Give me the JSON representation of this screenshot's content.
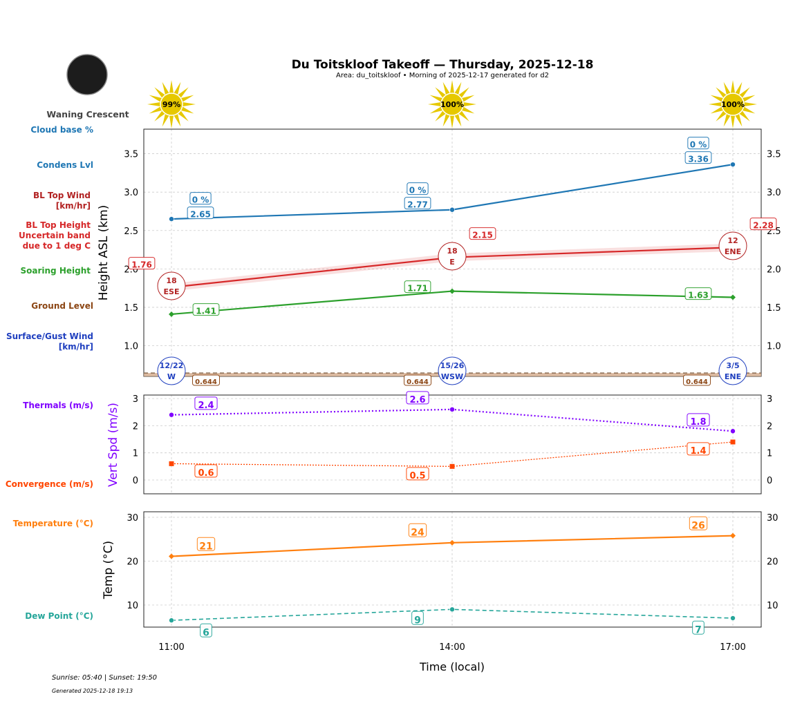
{
  "title": "Du Toitskloof Takeoff — Thursday, 2025-12-18",
  "subtitle": "Area: du_toitskloof • Morning of 2025-12-17 generated for d2",
  "moon": {
    "phase": "Waning Crescent"
  },
  "footer": {
    "sun": "Sunrise: 05:40 | Sunset: 19:50",
    "generated": "Generated 2025-12-18 19:13"
  },
  "colors": {
    "cloud": "#1f77b4",
    "bltop": "#d62728",
    "soaring": "#2ca02c",
    "ground": "#8b4513",
    "surface": "#1f3fbf",
    "thermal": "#8000ff",
    "convergence": "#ff4500",
    "temp": "#ff7f0e",
    "dew": "#26a69a",
    "sun": "#e6c800"
  },
  "chart_data": [
    {
      "type": "line",
      "ylabel": "Height ASL (km)",
      "ylim": [
        0.6,
        3.82
      ],
      "yticks": [
        1.0,
        1.5,
        2.0,
        2.5,
        3.0,
        3.5
      ],
      "grid": true,
      "x": [
        "11:00",
        "14:00",
        "17:00"
      ],
      "sun_percent": [
        "99%",
        "100%",
        "100%"
      ],
      "row_labels": [
        "Cloud base %",
        "Condens Lvl",
        "BL Top Wind [km/hr]",
        "BL Top Height Uncertain band due to 1 deg C",
        "Soaring Height",
        "Ground Level",
        "Surface/Gust Wind [km/hr]"
      ],
      "series": [
        {
          "name": "Condens Lvl",
          "values": [
            2.65,
            2.77,
            3.36
          ],
          "labels": [
            "2.65",
            "2.77",
            "3.36"
          ],
          "cloud_base": [
            "0 %",
            "0 %",
            "0 %"
          ]
        },
        {
          "name": "BL Top Height",
          "values": [
            1.76,
            2.15,
            2.28
          ],
          "band": 0.05,
          "labels": [
            "1.76",
            "2.15",
            "2.28"
          ],
          "wind": [
            [
              "18",
              "ESE"
            ],
            [
              "18",
              "E"
            ],
            [
              "12",
              "ENE"
            ]
          ]
        },
        {
          "name": "Soaring Height",
          "values": [
            1.41,
            1.71,
            1.63
          ],
          "labels": [
            "1.41",
            "1.71",
            "1.63"
          ]
        },
        {
          "name": "Ground Level",
          "values": [
            0.644,
            0.644,
            0.644
          ],
          "labels": [
            "0.644",
            "0.644",
            "0.644"
          ]
        },
        {
          "name": "Surface/Gust Wind",
          "wind": [
            [
              "12/22",
              "W"
            ],
            [
              "15/26",
              "WSW"
            ],
            [
              "3/5",
              "ENE"
            ]
          ]
        }
      ]
    },
    {
      "type": "line",
      "ylabel": "Vert Spd (m/s)",
      "ylim": [
        -0.51,
        3.13
      ],
      "yticks": [
        0,
        1,
        2,
        3
      ],
      "grid": true,
      "row_labels": [
        "Thermals (m/s)",
        "Convergence (m/s)"
      ],
      "series": [
        {
          "name": "Thermals",
          "values": [
            2.4,
            2.6,
            1.8
          ],
          "labels": [
            "2.4",
            "2.6",
            "1.8"
          ]
        },
        {
          "name": "Convergence",
          "values": [
            0.6,
            0.5,
            1.4
          ],
          "labels": [
            "0.6",
            "0.5",
            "1.4"
          ]
        }
      ]
    },
    {
      "type": "line",
      "ylabel": "Temp (°C)",
      "xlabel": "Time (local)",
      "ylim": [
        4.96,
        31.26
      ],
      "yticks": [
        10,
        20,
        30
      ],
      "grid": true,
      "xticks": [
        "11:00",
        "14:00",
        "17:00"
      ],
      "row_labels": [
        "Temperature (°C)",
        "Dew Point (°C)"
      ],
      "series": [
        {
          "name": "Temperature",
          "values": [
            21.1,
            24.2,
            25.8
          ],
          "labels": [
            "21",
            "24",
            "26"
          ]
        },
        {
          "name": "Dew Point",
          "values": [
            6.5,
            9.0,
            7.0
          ],
          "labels": [
            "6",
            "9",
            "7"
          ]
        }
      ]
    }
  ]
}
